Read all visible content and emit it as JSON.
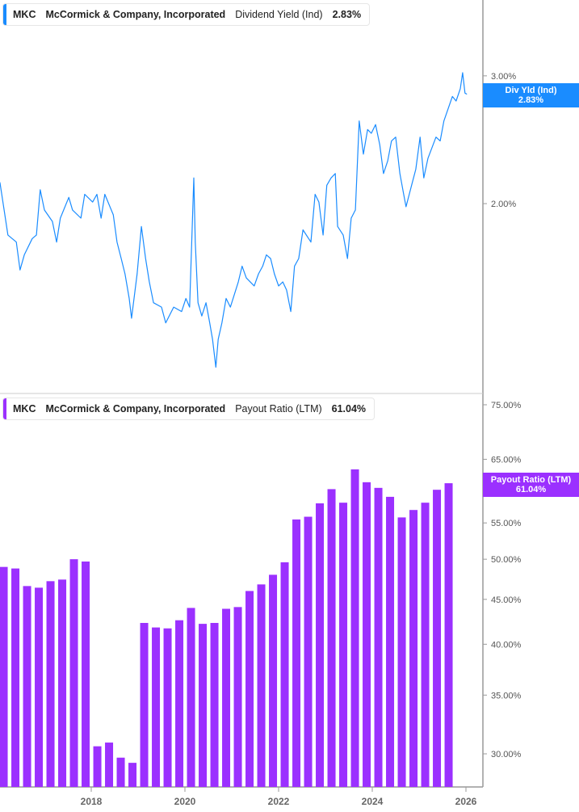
{
  "colors": {
    "yield": "#1a8cff",
    "payout": "#9b30ff",
    "axis": "#999999",
    "text": "#555555"
  },
  "top_legend": {
    "ticker": "MKC",
    "company": "McCormick & Company, Incorporated",
    "metric": "Dividend Yield (Ind)",
    "value": "2.83%"
  },
  "top_tag": {
    "label": "Div Yld (Ind)",
    "value": "2.83%"
  },
  "bottom_legend": {
    "ticker": "MKC",
    "company": "McCormick & Company, Incorporated",
    "metric": "Payout Ratio (LTM)",
    "value": "61.04%"
  },
  "bottom_tag": {
    "label": "Payout Ratio (LTM)",
    "value": "61.04%"
  },
  "chart_data": [
    {
      "type": "line",
      "yscale": "log",
      "xlim": [
        2016.05,
        2026.4
      ],
      "y_ticks": [
        {
          "v": 3.0,
          "label": "3.00%"
        },
        {
          "v": 2.0,
          "label": "2.00%"
        }
      ],
      "series": [
        {
          "name": "Dividend Yield (Ind)",
          "x": [
            2016.05,
            2016.14,
            2016.22,
            2016.4,
            2016.48,
            2016.57,
            2016.74,
            2016.83,
            2016.91,
            2017.0,
            2017.17,
            2017.26,
            2017.34,
            2017.52,
            2017.6,
            2017.78,
            2017.86,
            2018.03,
            2018.12,
            2018.21,
            2018.29,
            2018.47,
            2018.55,
            2018.64,
            2018.72,
            2018.81,
            2018.86,
            2018.98,
            2019.07,
            2019.16,
            2019.24,
            2019.33,
            2019.5,
            2019.59,
            2019.76,
            2019.93,
            2020.02,
            2020.1,
            2020.19,
            2020.22,
            2020.28,
            2020.36,
            2020.45,
            2020.53,
            2020.59,
            2020.66,
            2020.71,
            2020.79,
            2020.88,
            2020.97,
            2021.14,
            2021.22,
            2021.31,
            2021.48,
            2021.57,
            2021.66,
            2021.74,
            2021.83,
            2021.91,
            2022.0,
            2022.09,
            2022.17,
            2022.26,
            2022.34,
            2022.43,
            2022.52,
            2022.69,
            2022.78,
            2022.86,
            2022.95,
            2023.03,
            2023.12,
            2023.21,
            2023.26,
            2023.38,
            2023.47,
            2023.55,
            2023.64,
            2023.72,
            2023.81,
            2023.9,
            2023.98,
            2024.07,
            2024.16,
            2024.24,
            2024.33,
            2024.41,
            2024.5,
            2024.59,
            2024.67,
            2024.72,
            2024.84,
            2024.93,
            2025.02,
            2025.1,
            2025.19,
            2025.36,
            2025.45,
            2025.53,
            2025.71,
            2025.79,
            2025.88,
            2025.93,
            2025.98,
            2026.02
          ],
          "y": [
            2.14,
            1.96,
            1.81,
            1.77,
            1.62,
            1.7,
            1.79,
            1.81,
            2.09,
            1.96,
            1.89,
            1.77,
            1.91,
            2.04,
            1.96,
            1.91,
            2.06,
            2.01,
            2.06,
            1.91,
            2.06,
            1.93,
            1.77,
            1.68,
            1.6,
            1.48,
            1.39,
            1.6,
            1.86,
            1.68,
            1.56,
            1.46,
            1.44,
            1.37,
            1.44,
            1.42,
            1.48,
            1.44,
            2.17,
            1.77,
            1.46,
            1.4,
            1.46,
            1.37,
            1.3,
            1.19,
            1.3,
            1.37,
            1.48,
            1.44,
            1.56,
            1.64,
            1.58,
            1.54,
            1.6,
            1.64,
            1.7,
            1.68,
            1.6,
            1.54,
            1.56,
            1.52,
            1.42,
            1.64,
            1.68,
            1.84,
            1.77,
            2.06,
            2.01,
            1.81,
            2.12,
            2.17,
            2.2,
            1.86,
            1.81,
            1.68,
            1.91,
            1.96,
            2.6,
            2.34,
            2.53,
            2.5,
            2.57,
            2.41,
            2.2,
            2.29,
            2.44,
            2.47,
            2.2,
            2.06,
            1.98,
            2.12,
            2.23,
            2.47,
            2.17,
            2.31,
            2.47,
            2.44,
            2.6,
            2.81,
            2.77,
            2.88,
            3.03,
            2.84,
            2.83
          ]
        }
      ]
    },
    {
      "type": "bar",
      "yscale": "log",
      "y_ticks": [
        {
          "v": 75,
          "label": "75.00%"
        },
        {
          "v": 65,
          "label": "65.00%"
        },
        {
          "v": 55,
          "label": "55.00%"
        },
        {
          "v": 50,
          "label": "50.00%"
        },
        {
          "v": 45,
          "label": "45.00%"
        },
        {
          "v": 40,
          "label": "40.00%"
        },
        {
          "v": 35,
          "label": "35.00%"
        },
        {
          "v": 30,
          "label": "30.00%"
        }
      ],
      "x_ticks": [
        "2018",
        "2020",
        "2022",
        "2024",
        "2026"
      ],
      "series": [
        {
          "name": "Payout Ratio (LTM)",
          "x": [
            2016.13,
            2016.38,
            2016.63,
            2016.88,
            2017.13,
            2017.38,
            2017.63,
            2017.88,
            2018.13,
            2018.38,
            2018.63,
            2018.88,
            2019.13,
            2019.38,
            2019.63,
            2019.88,
            2020.13,
            2020.38,
            2020.63,
            2020.88,
            2021.13,
            2021.38,
            2021.63,
            2021.88,
            2022.13,
            2022.38,
            2022.63,
            2022.88,
            2023.13,
            2023.38,
            2023.63,
            2023.88,
            2024.13,
            2024.38,
            2024.63,
            2024.88,
            2025.13,
            2025.38,
            2025.63
          ],
          "values": [
            49.0,
            48.8,
            46.6,
            46.4,
            47.2,
            47.4,
            50.0,
            49.7,
            30.6,
            30.9,
            29.7,
            29.3,
            42.3,
            41.8,
            41.7,
            42.6,
            44.0,
            42.2,
            42.3,
            43.9,
            44.1,
            46.0,
            46.8,
            48.0,
            49.6,
            55.5,
            55.9,
            57.9,
            60.1,
            58.0,
            63.3,
            61.2,
            60.3,
            58.9,
            55.8,
            56.9,
            58.0,
            60.0,
            61.04
          ]
        }
      ]
    }
  ]
}
